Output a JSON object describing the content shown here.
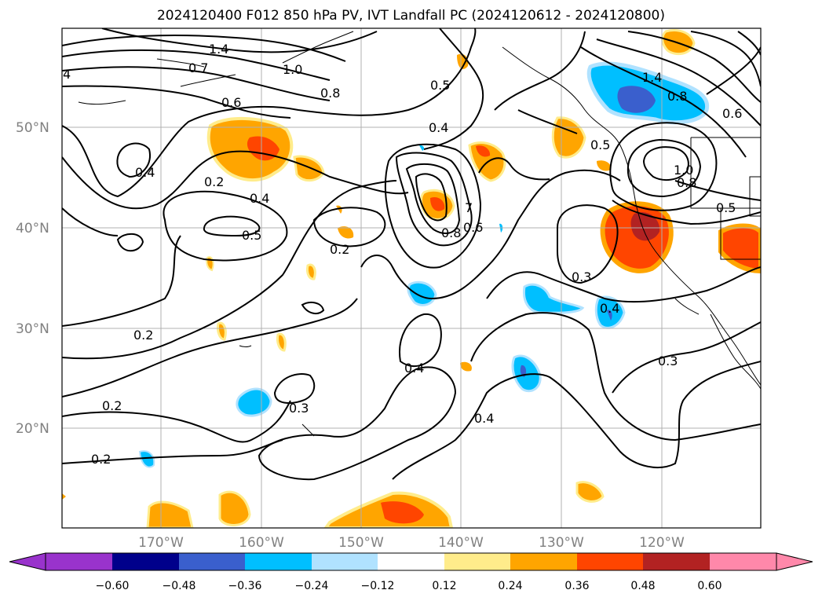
{
  "title": "2024120400 F012 850 hPa PV, IVT Landfall PC (2024120612 - 2024120800)",
  "map": {
    "lat_labels": [
      "50°N",
      "40°N",
      "30°N",
      "20°N"
    ],
    "lon_labels": [
      "170°W",
      "160°W",
      "150°W",
      "140°W",
      "130°W",
      "120°W"
    ],
    "contour_labels": [
      "1.4",
      "0.7",
      "1.0",
      "0.6",
      "0.8",
      "4",
      "0.5",
      "0.4",
      "0.4",
      "0.2",
      "0.4",
      "0.5",
      "0.2",
      "0.8",
      "0.6",
      "0.2",
      "0.2",
      "0.3",
      "0.2",
      "0.4",
      "0.4",
      "0.3",
      "0.4",
      "0.3",
      "1.4",
      "0.8",
      "0.6",
      "0.5",
      "1.0",
      "0.8",
      "0.5",
      "7"
    ]
  },
  "colorbar": {
    "ticks": [
      "−0.60",
      "−0.48",
      "−0.36",
      "−0.24",
      "−0.12",
      "0.12",
      "0.24",
      "0.36",
      "0.48",
      "0.60"
    ],
    "colors": [
      "#9933cc",
      "#00008b",
      "#3a5fcd",
      "#00bfff",
      "#b0e2ff",
      "#ffffff",
      "#ffec8b",
      "#ffa500",
      "#ff4500",
      "#b22222",
      "#ff88aa"
    ]
  }
}
